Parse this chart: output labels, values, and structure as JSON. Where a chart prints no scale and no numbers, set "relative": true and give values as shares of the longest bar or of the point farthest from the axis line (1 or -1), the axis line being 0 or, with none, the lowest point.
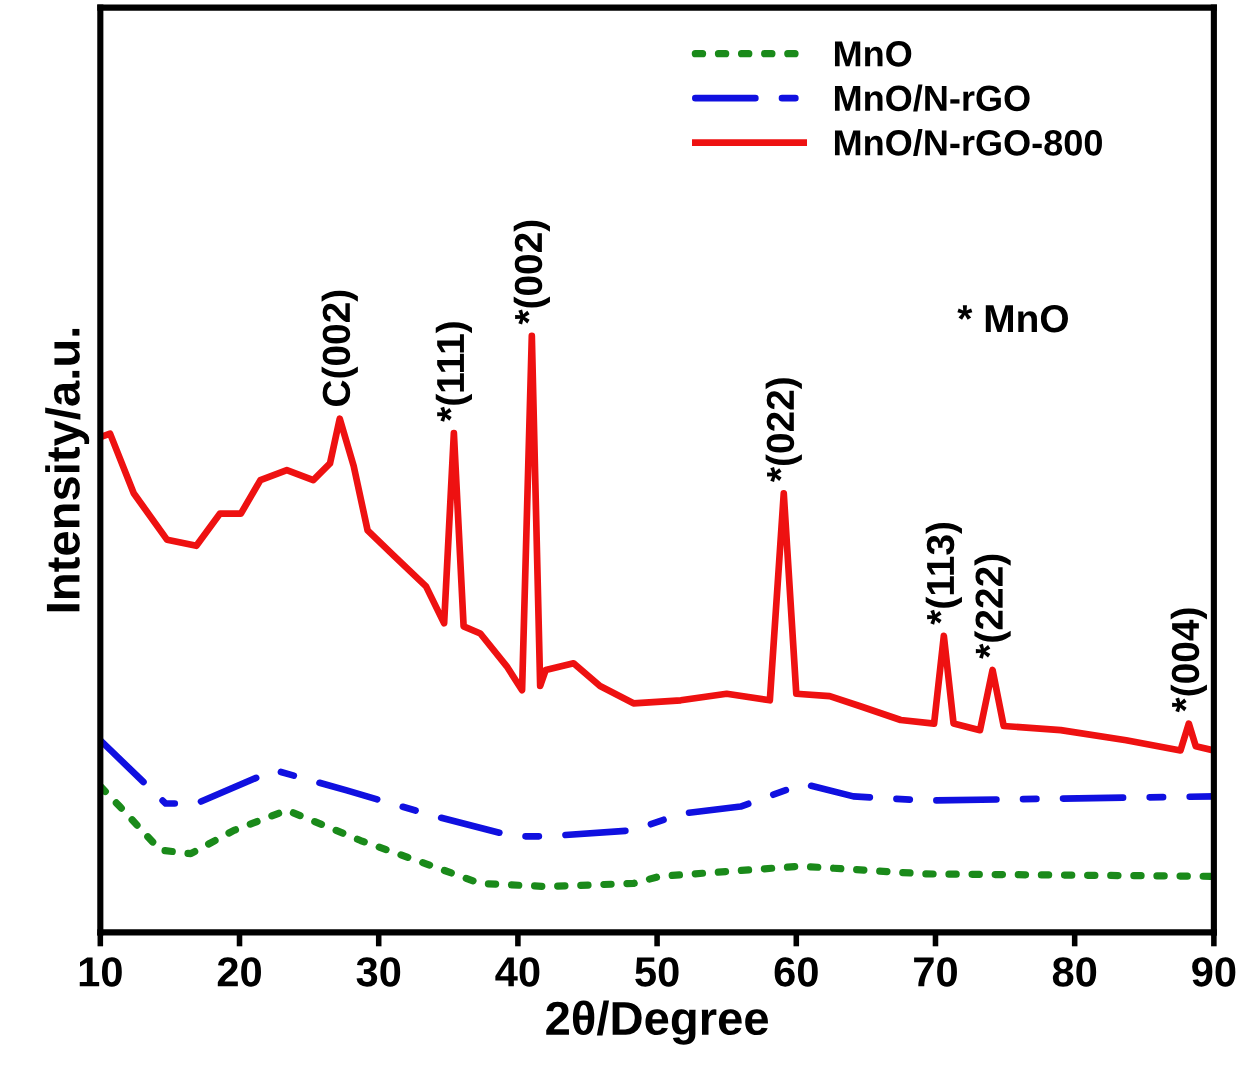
{
  "chart_data": {
    "type": "line",
    "relative": true,
    "xlabel": "2θ/Degree",
    "ylabel": "Intensity/a.u.",
    "xlim": [
      10,
      90
    ],
    "xticks": [
      10,
      20,
      30,
      40,
      50,
      60,
      70,
      80,
      90
    ],
    "tick_labels": "x",
    "grid": false,
    "legend": "top right",
    "marker": "none",
    "series": [
      {
        "name": "MnO",
        "color": "#1a8a1a",
        "line_style": "dotted",
        "x": [
          10,
          11.4,
          14.3,
          16.5,
          19.6,
          23.4,
          28.7,
          33.4,
          37.3,
          42.0,
          48.3,
          50.2,
          60.3,
          69.3,
          90
        ],
        "values": [
          0.245,
          0.211,
          0.138,
          0.132,
          0.171,
          0.205,
          0.154,
          0.115,
          0.082,
          0.077,
          0.082,
          0.094,
          0.111,
          0.098,
          0.094
        ]
      },
      {
        "name": "MnO/N-rGO",
        "color": "#1010e0",
        "line_style": "dashed",
        "x": [
          10,
          14.7,
          16.9,
          22.5,
          27.7,
          34.0,
          39.7,
          42.0,
          48.3,
          51.7,
          56.0,
          60.5,
          64.1,
          69.3,
          90
        ],
        "values": [
          0.322,
          0.216,
          0.216,
          0.272,
          0.238,
          0.195,
          0.161,
          0.161,
          0.171,
          0.199,
          0.211,
          0.249,
          0.228,
          0.221,
          0.228
        ]
      },
      {
        "name": "MnO/N-rGO-800",
        "color": "#ee1111",
        "line_style": "solid",
        "x": [
          10,
          10.7,
          12.4,
          14.8,
          16.9,
          18.6,
          20.1,
          21.5,
          23.4,
          25.3,
          26.5,
          27.2,
          28.2,
          29.2,
          31.1,
          33.4,
          34.7,
          35.4,
          36.1,
          37.3,
          39.2,
          40.3,
          41.0,
          41.6,
          42.0,
          44.0,
          45.9,
          48.3,
          51.7,
          55.0,
          58.1,
          59.1,
          60.0,
          62.4,
          64.6,
          67.5,
          69.9,
          70.6,
          71.3,
          73.2,
          74.1,
          74.9,
          79.0,
          83.7,
          87.6,
          88.2,
          88.7,
          90
        ],
        "values": [
          0.83,
          0.836,
          0.736,
          0.658,
          0.648,
          0.702,
          0.702,
          0.758,
          0.775,
          0.758,
          0.786,
          0.861,
          0.782,
          0.674,
          0.631,
          0.58,
          0.518,
          0.837,
          0.513,
          0.501,
          0.446,
          0.406,
          1.0,
          0.413,
          0.44,
          0.451,
          0.413,
          0.384,
          0.389,
          0.4,
          0.389,
          0.736,
          0.4,
          0.396,
          0.379,
          0.356,
          0.35,
          0.497,
          0.35,
          0.339,
          0.44,
          0.346,
          0.339,
          0.322,
          0.305,
          0.35,
          0.312,
          0.305
        ]
      }
    ],
    "annotations": [
      {
        "text": "C(002)",
        "x": 27.2,
        "y": 0.861
      },
      {
        "text": "*(111)",
        "x": 35.4,
        "y": 0.837
      },
      {
        "text": "*(002)",
        "x": 41.0,
        "y": 1.0
      },
      {
        "text": "*(022)",
        "x": 59.1,
        "y": 0.736
      },
      {
        "text": "*(113)",
        "x": 70.6,
        "y": 0.497
      },
      {
        "text": "*(222)",
        "x": 74.1,
        "y": 0.44
      },
      {
        "text": "*(004)",
        "x": 88.2,
        "y": 0.35
      },
      "* MnO"
    ]
  }
}
